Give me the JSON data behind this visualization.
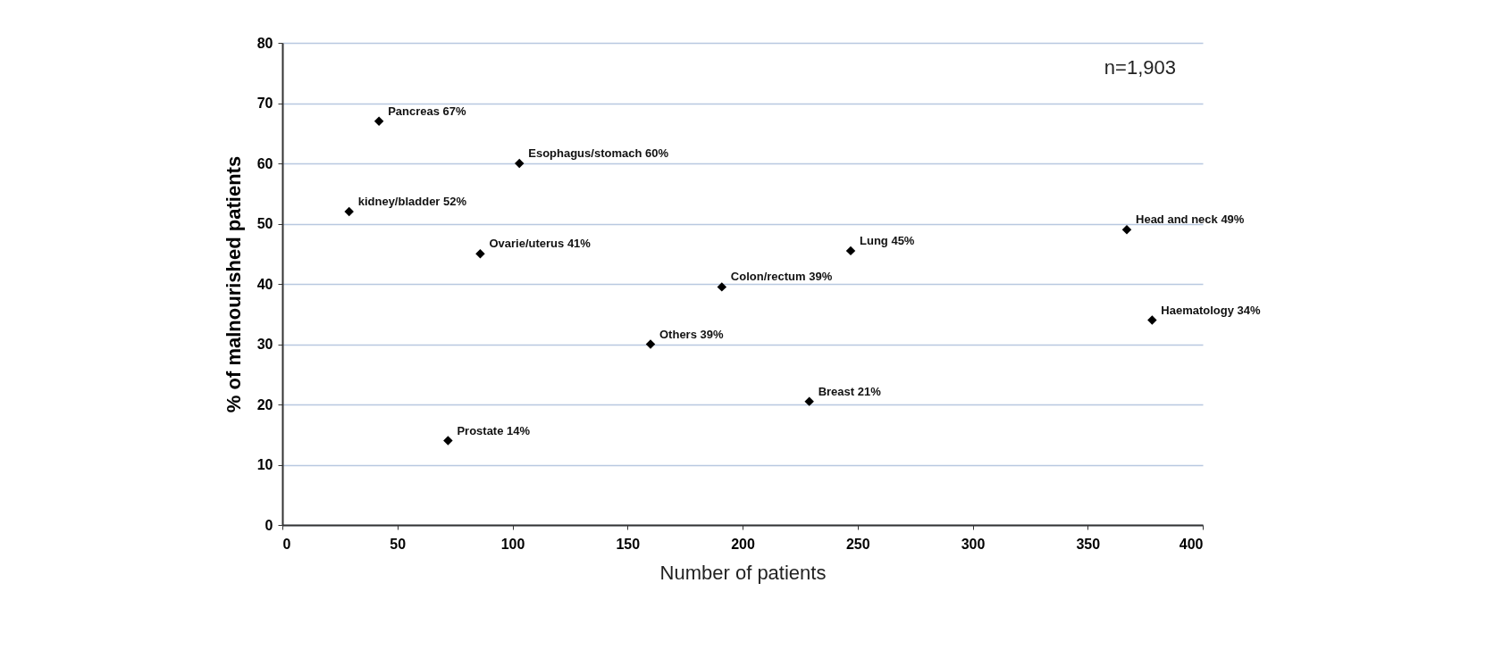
{
  "chart_data": {
    "type": "scatter",
    "xlabel": "Number of patients",
    "ylabel": "% of malnourished patients",
    "x": [
      42,
      103,
      29,
      86,
      191,
      160,
      229,
      72,
      247,
      367,
      378
    ],
    "values": [
      67,
      60,
      52,
      45,
      39.5,
      30,
      20.5,
      14,
      45.5,
      49,
      34
    ],
    "color": "#000000",
    "marker": "diamond",
    "grid": "y",
    "xlim": [
      0,
      400
    ],
    "xticks": [
      0,
      50,
      100,
      150,
      200,
      250,
      300,
      350,
      400
    ],
    "ylim": [
      0,
      80
    ],
    "yticks": [
      0,
      10,
      20,
      30,
      40,
      50,
      60,
      70,
      80
    ],
    "annotations": [
      {
        "text": "Pancreas 67%",
        "x": 42,
        "y": 67
      },
      {
        "text": "Esophagus/stomach 60%",
        "x": 103,
        "y": 60
      },
      {
        "text": "kidney/bladder 52%",
        "x": 29,
        "y": 52
      },
      {
        "text": "Ovarie/uterus 41%",
        "x": 86,
        "y": 45
      },
      {
        "text": "Colon/rectum 39%",
        "x": 191,
        "y": 39.5
      },
      {
        "text": "Others 39%",
        "x": 160,
        "y": 30
      },
      {
        "text": "Breast 21%",
        "x": 229,
        "y": 20.5
      },
      {
        "text": "Prostate 14%",
        "x": 72,
        "y": 14
      },
      {
        "text": "Lung 45%",
        "x": 247,
        "y": 45.5
      },
      {
        "text": "Head and neck 49%",
        "x": 367,
        "y": 49
      },
      {
        "text": "Haematology 34%",
        "x": 378,
        "y": 34
      },
      "n=1,903"
    ]
  }
}
